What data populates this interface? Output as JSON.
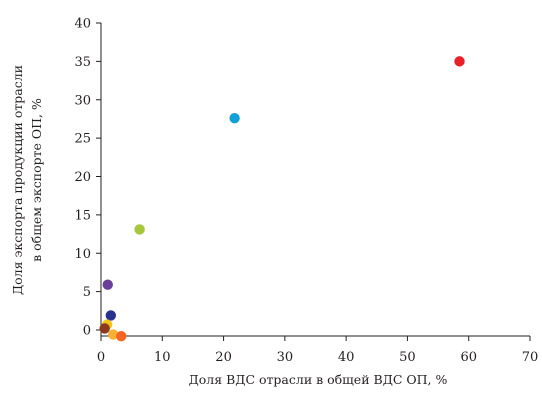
{
  "chart_data": {
    "type": "scatter",
    "title": "",
    "xlabel": "Доля ВДС отрасли в общей ВДС ОП, %",
    "ylabel_lines": [
      "Доля экспорта продукции отрасли",
      "в общем экспорте ОП, %"
    ],
    "xlim": [
      0,
      70
    ],
    "ylim": [
      0,
      40
    ],
    "xticks": [
      0,
      10,
      20,
      30,
      40,
      50,
      60,
      70
    ],
    "yticks": [
      0,
      5,
      10,
      15,
      20,
      25,
      30,
      35,
      40
    ],
    "grid": false,
    "legend": "none",
    "points": [
      {
        "x": 58.5,
        "y": 35.0,
        "color": "#e8202a"
      },
      {
        "x": 21.8,
        "y": 27.6,
        "color": "#12a0d8"
      },
      {
        "x": 6.3,
        "y": 13.1,
        "color": "#a8c63c"
      },
      {
        "x": 1.1,
        "y": 5.9,
        "color": "#6a3f98"
      },
      {
        "x": 1.6,
        "y": 1.9,
        "color": "#27318e"
      },
      {
        "x": 1.0,
        "y": 0.7,
        "color": "#f2c418"
      },
      {
        "x": 0.6,
        "y": 0.2,
        "color": "#8b3a1e"
      },
      {
        "x": 2.0,
        "y": -0.6,
        "color": "#f7b033"
      },
      {
        "x": 3.3,
        "y": -0.8,
        "color": "#f26522"
      }
    ]
  }
}
